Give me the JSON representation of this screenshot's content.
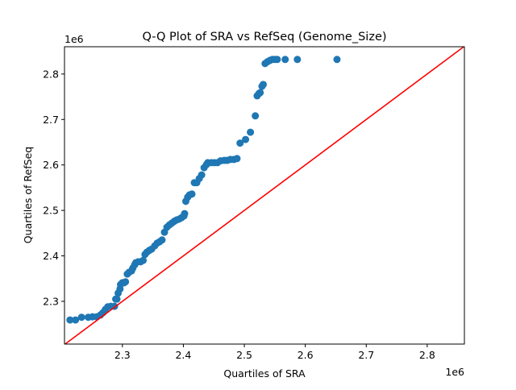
{
  "chart_data": {
    "type": "scatter",
    "title": "Q-Q Plot of SRA vs RefSeq (Genome_Size)",
    "xlabel": "Quartiles of SRA",
    "ylabel": "Quartiles of RefSeq",
    "x_offset_label": "1e6",
    "y_offset_label": "1e6",
    "xlim": [
      2.205,
      2.861
    ],
    "ylim": [
      2.206,
      2.86
    ],
    "x_ticks": [
      "2.3",
      "2.4",
      "2.5",
      "2.6",
      "2.7",
      "2.8"
    ],
    "y_ticks": [
      "2.3",
      "2.4",
      "2.5",
      "2.6",
      "2.7",
      "2.8"
    ],
    "grid": false,
    "point_color": "#1f77b4",
    "reference_line": {
      "type": "y=x",
      "color": "#ff0000"
    },
    "series": [
      {
        "x": [
          2.214,
          2.223,
          2.233,
          2.244,
          2.251,
          2.258,
          2.264,
          2.268,
          2.272,
          2.276,
          2.281,
          2.287,
          2.289,
          2.291,
          2.293,
          2.296,
          2.297,
          2.3,
          2.303,
          2.305,
          2.308,
          2.311,
          2.315,
          2.317,
          2.32,
          2.322,
          2.326,
          2.33,
          2.334,
          2.337,
          2.34,
          2.344,
          2.348,
          2.353,
          2.357,
          2.361,
          2.365,
          2.369,
          2.373,
          2.377,
          2.381,
          2.385,
          2.389,
          2.393,
          2.397,
          2.401,
          2.402,
          2.404,
          2.407,
          2.41,
          2.414,
          2.418,
          2.422,
          2.426,
          2.43,
          2.434,
          2.438,
          2.44,
          2.446,
          2.451,
          2.456,
          2.461,
          2.467,
          2.472,
          2.477,
          2.483,
          2.488,
          2.493,
          2.502,
          2.51,
          2.518,
          2.521,
          2.524,
          2.526,
          2.529,
          2.531,
          2.534,
          2.538,
          2.542,
          2.546,
          2.55,
          2.554,
          2.567,
          2.587,
          2.652
        ],
        "y": [
          2.259,
          2.259,
          2.265,
          2.265,
          2.266,
          2.266,
          2.27,
          2.275,
          2.282,
          2.288,
          2.289,
          2.289,
          2.305,
          2.305,
          2.318,
          2.327,
          2.337,
          2.341,
          2.341,
          2.343,
          2.36,
          2.364,
          2.367,
          2.373,
          2.38,
          2.385,
          2.387,
          2.387,
          2.39,
          2.403,
          2.408,
          2.412,
          2.415,
          2.422,
          2.428,
          2.431,
          2.435,
          2.452,
          2.463,
          2.468,
          2.472,
          2.476,
          2.479,
          2.481,
          2.484,
          2.488,
          2.493,
          2.52,
          2.529,
          2.534,
          2.536,
          2.561,
          2.561,
          2.57,
          2.578,
          2.594,
          2.601,
          2.605,
          2.605,
          2.605,
          2.605,
          2.609,
          2.61,
          2.61,
          2.612,
          2.612,
          2.614,
          2.648,
          2.656,
          2.672,
          2.708,
          2.752,
          2.757,
          2.759,
          2.773,
          2.777,
          2.823,
          2.827,
          2.83,
          2.832,
          2.832,
          2.832,
          2.832,
          2.832,
          2.832
        ]
      }
    ]
  }
}
